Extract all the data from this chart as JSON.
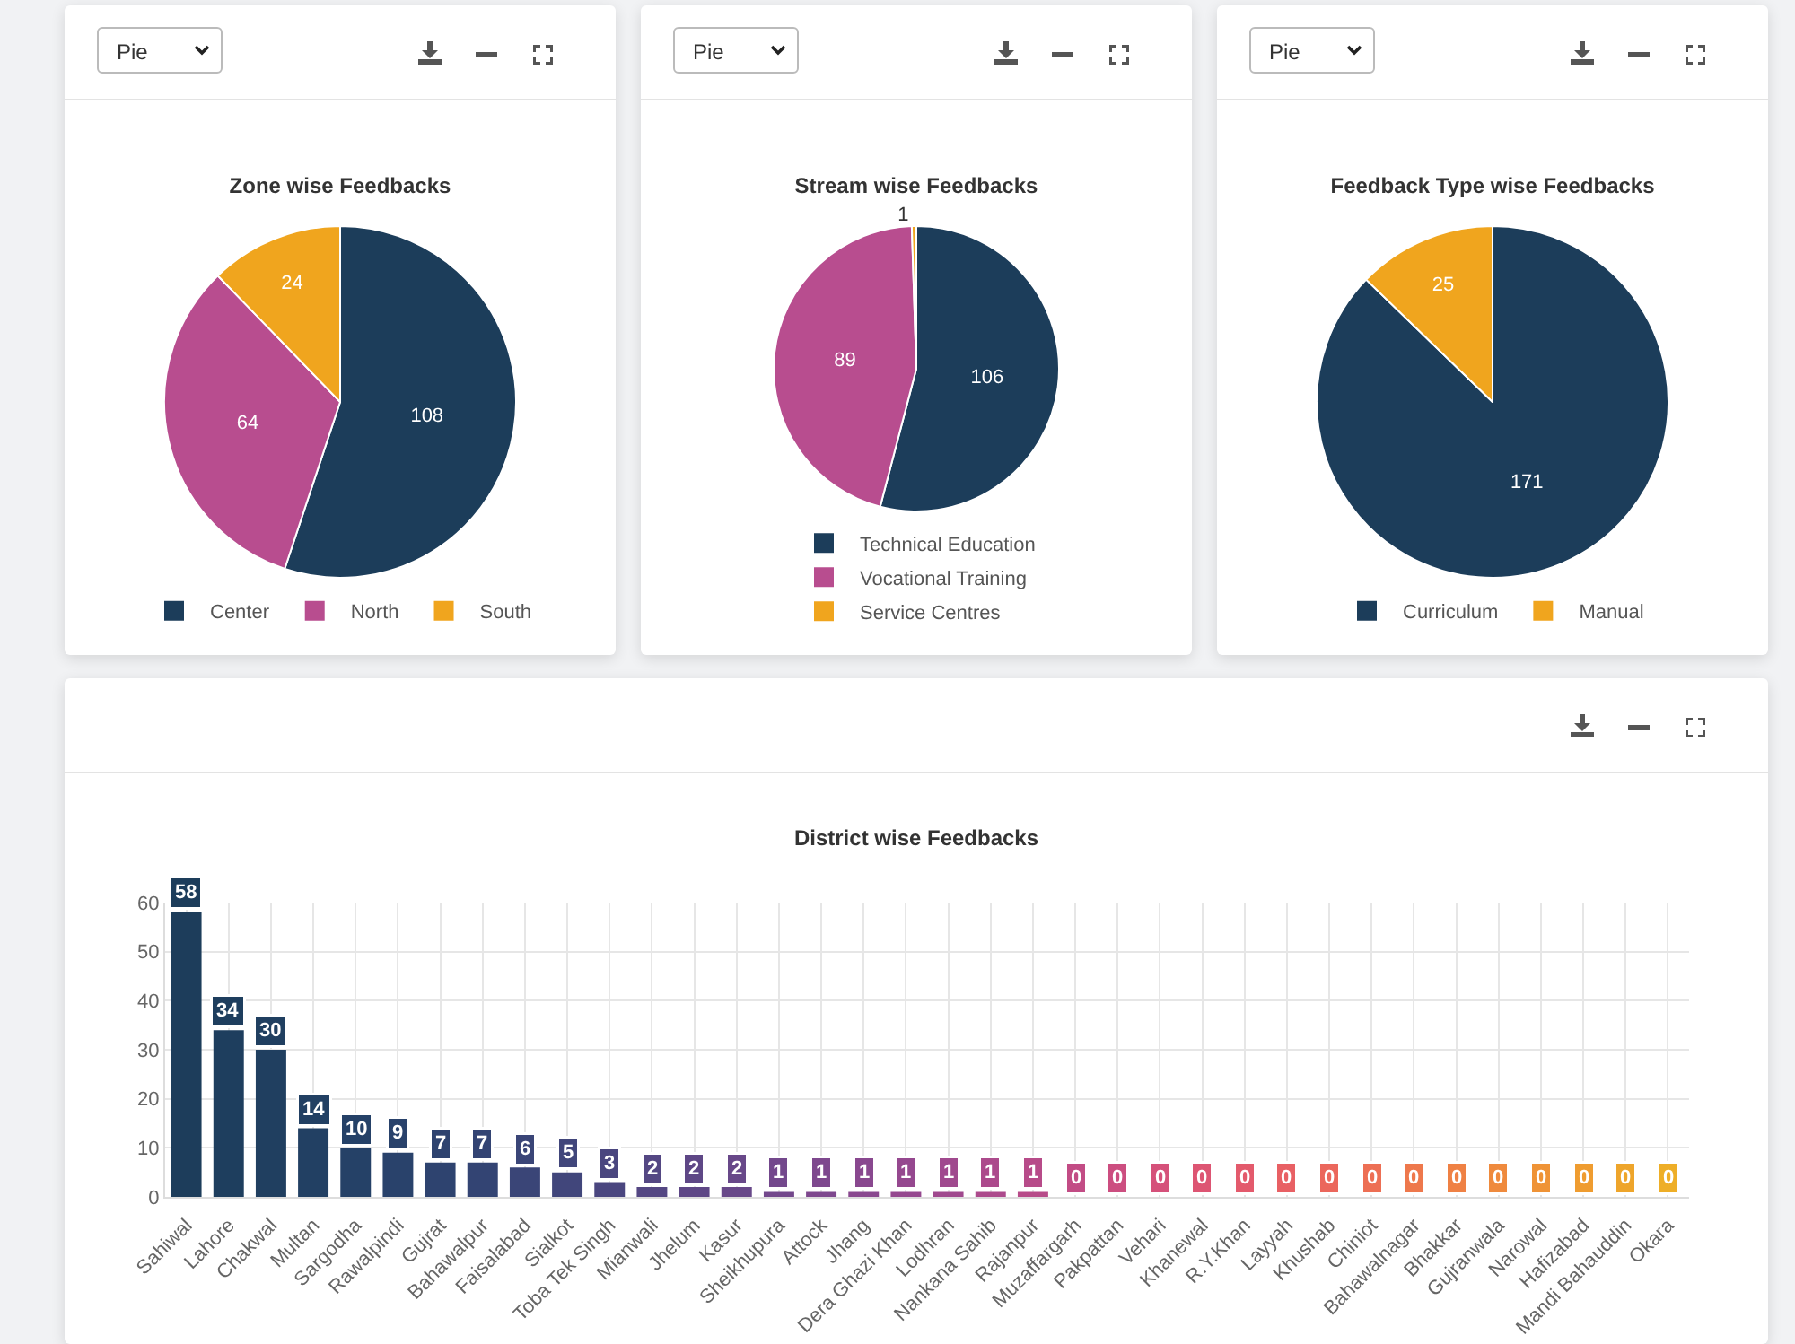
{
  "chart_data": [
    {
      "type": "pie",
      "title": "Zone wise Feedbacks",
      "categories": [
        "Center",
        "North",
        "South"
      ],
      "values": [
        108,
        64,
        24
      ],
      "colors": [
        "#1c3d5a",
        "#b84d8f",
        "#f0a51e"
      ],
      "data_labels": true,
      "legend": "bottom",
      "annotations": [
        "Pie"
      ]
    },
    {
      "type": "pie",
      "title": "Stream wise Feedbacks",
      "categories": [
        "Technical Education",
        "Vocational Training",
        "Service Centres"
      ],
      "values": [
        106,
        89,
        1
      ],
      "colors": [
        "#1c3d5a",
        "#b84d8f",
        "#f0a51e"
      ],
      "data_labels": true,
      "legend": "bottom",
      "annotations": [
        "Pie"
      ]
    },
    {
      "type": "pie",
      "title": "Feedback Type wise Feedbacks",
      "categories": [
        "Curriculum",
        "Manual"
      ],
      "values": [
        171,
        25
      ],
      "colors": [
        "#1c3d5a",
        "#f0a51e"
      ],
      "data_labels": true,
      "legend": "bottom",
      "annotations": [
        "Pie"
      ]
    },
    {
      "type": "bar",
      "title": "District wise Feedbacks",
      "categories": [
        "Sahiwal",
        "Lahore",
        "Chakwal",
        "Multan",
        "Sargodha",
        "Rawalpindi",
        "Gujrat",
        "Bahawalpur",
        "Faisalabad",
        "Sialkot",
        "Toba Tek Singh",
        "Mianwali",
        "Jhelum",
        "Kasur",
        "Sheikhupura",
        "Attock",
        "Jhang",
        "Dera Ghazi Khan",
        "Lodhran",
        "Nankana Sahib",
        "Rajanpur",
        "Muzaffargarh",
        "Pakpattan",
        "Vehari",
        "Khanewal",
        "R.Y.Khan",
        "Layyah",
        "Khushab",
        "Chiniot",
        "Bahawalnagar",
        "Bhakkar",
        "Gujranwala",
        "Narowal",
        "Hafizabad",
        "Mandi Bahauddin",
        "Okara"
      ],
      "values": [
        58,
        34,
        30,
        14,
        10,
        9,
        7,
        7,
        6,
        5,
        3,
        2,
        2,
        2,
        1,
        1,
        1,
        1,
        1,
        1,
        1,
        0,
        0,
        0,
        0,
        0,
        0,
        0,
        0,
        0,
        0,
        0,
        0,
        0,
        0,
        0
      ],
      "colors": [
        "#1d3d5b",
        "#1e3e5e",
        "#203f60",
        "#224063",
        "#254167",
        "#29426b",
        "#2e436f",
        "#334473",
        "#3a4577",
        "#41467b",
        "#4a467f",
        "#544783",
        "#5e4786",
        "#684889",
        "#73488c",
        "#7e488e",
        "#89488f",
        "#95488f",
        "#a0498e",
        "#ac4a8c",
        "#b74b89",
        "#c24c85",
        "#cc4e80",
        "#d5517a",
        "#dd5573",
        "#e35a6c",
        "#e86064",
        "#eb675c",
        "#ed6f54",
        "#ee784c",
        "#ef8144",
        "#ef8a3d",
        "#ef9336",
        "#ef9c30",
        "#eea52b",
        "#eeae27"
      ],
      "ylim": [
        0,
        60
      ],
      "yticks": [
        0,
        10,
        20,
        30,
        40,
        50,
        60
      ],
      "grid": true,
      "data_labels": true,
      "legend": false
    }
  ]
}
